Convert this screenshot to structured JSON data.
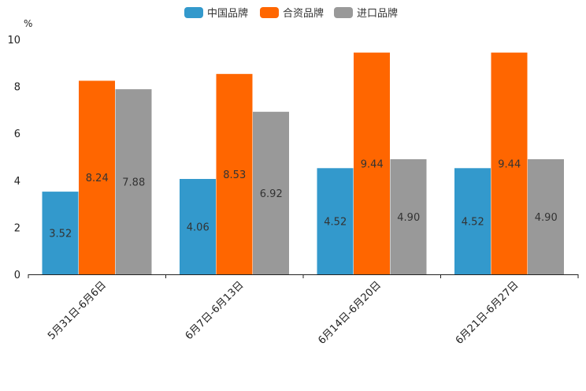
{
  "chart_data": {
    "type": "bar",
    "unit_label": "%",
    "categories": [
      "5月31日-6月6日",
      "6月7日-6月13日",
      "6月14日-6月20日",
      "6月21日-6月27日"
    ],
    "series": [
      {
        "name": "中国品牌",
        "color": "#3399cc",
        "values": [
          3.52,
          4.06,
          4.52,
          4.52
        ],
        "labels": [
          "3.52",
          "4.06",
          "4.52",
          "4.52"
        ]
      },
      {
        "name": "合资品牌",
        "color": "#ff6600",
        "values": [
          8.24,
          8.53,
          9.44,
          9.44
        ],
        "labels": [
          "8.24",
          "8.53",
          "9.44",
          "9.44"
        ]
      },
      {
        "name": "进口品牌",
        "color": "#999999",
        "values": [
          7.88,
          6.92,
          4.9,
          4.9
        ],
        "labels": [
          "7.88",
          "6.92",
          "4.90",
          "4.90"
        ]
      }
    ],
    "ylim": [
      0,
      10
    ],
    "yticks": [
      "0",
      "2",
      "4",
      "6",
      "8",
      "10"
    ],
    "legend_position": "top-center"
  }
}
